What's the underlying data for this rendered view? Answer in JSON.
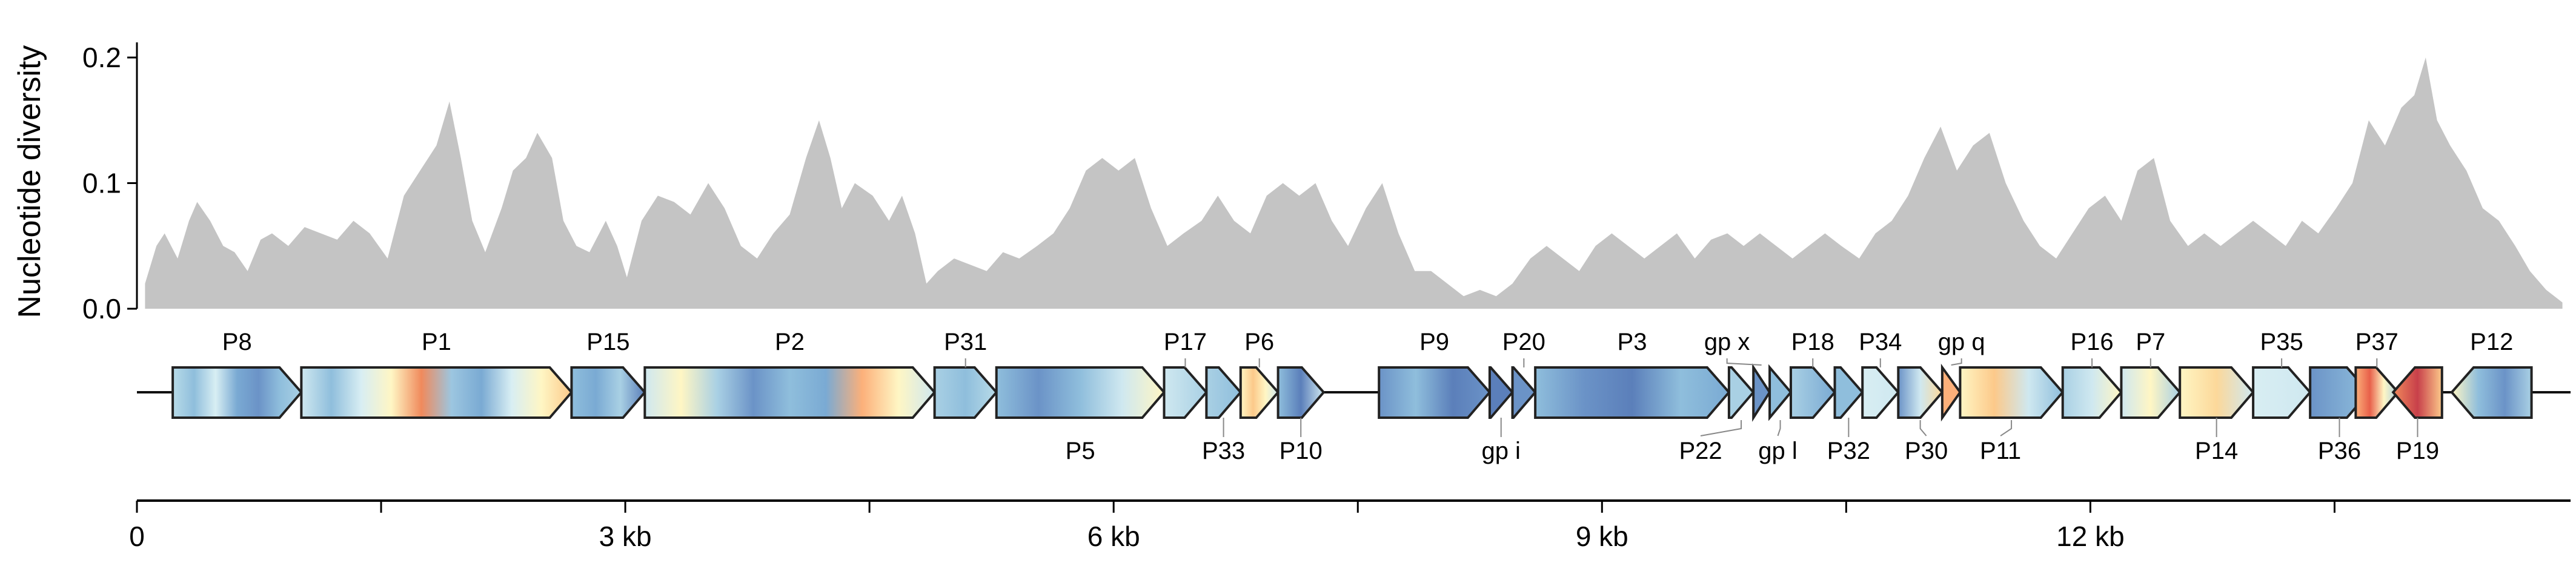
{
  "chart_data": {
    "type": "area",
    "ylabel": "Nucleotide diversity",
    "xlabel": "",
    "ylim": [
      0.0,
      0.2
    ],
    "yticks": [
      "0.0",
      "0.1",
      "0.2"
    ],
    "ytick_values": [
      0.0,
      0.1,
      0.2
    ],
    "xlim_kb": [
      0,
      14.95
    ],
    "xticks_kb": [
      0,
      1.5,
      3,
      4.5,
      6,
      7.5,
      9,
      10.5,
      12,
      13.5
    ],
    "xtick_labels": [
      "0",
      "",
      "3 kb",
      "",
      "6 kb",
      "",
      "9 kb",
      "",
      "12 kb",
      ""
    ],
    "fill_color": "#c4c4c4",
    "series": [
      {
        "name": "Nucleotide diversity",
        "x_kb": [
          0.05,
          0.12,
          0.17,
          0.25,
          0.32,
          0.37,
          0.45,
          0.53,
          0.6,
          0.68,
          0.76,
          0.83,
          0.93,
          1.03,
          1.13,
          1.23,
          1.33,
          1.43,
          1.54,
          1.64,
          1.74,
          1.84,
          1.92,
          1.99,
          2.06,
          2.14,
          2.24,
          2.31,
          2.39,
          2.46,
          2.55,
          2.62,
          2.7,
          2.78,
          2.88,
          2.95,
          3.01,
          3.1,
          3.2,
          3.3,
          3.4,
          3.51,
          3.61,
          3.71,
          3.81,
          3.91,
          4.01,
          4.11,
          4.19,
          4.26,
          4.33,
          4.41,
          4.52,
          4.62,
          4.7,
          4.78,
          4.85,
          4.92,
          5.02,
          5.12,
          5.22,
          5.32,
          5.42,
          5.53,
          5.63,
          5.73,
          5.83,
          5.93,
          6.03,
          6.13,
          6.23,
          6.33,
          6.43,
          6.54,
          6.64,
          6.74,
          6.84,
          6.94,
          7.04,
          7.14,
          7.24,
          7.34,
          7.44,
          7.55,
          7.65,
          7.75,
          7.85,
          7.95,
          8.05,
          8.15,
          8.25,
          8.35,
          8.45,
          8.56,
          8.66,
          8.76,
          8.86,
          8.96,
          9.06,
          9.16,
          9.26,
          9.36,
          9.46,
          9.57,
          9.67,
          9.77,
          9.87,
          9.97,
          10.07,
          10.17,
          10.27,
          10.37,
          10.47,
          10.58,
          10.68,
          10.78,
          10.88,
          10.98,
          11.08,
          11.18,
          11.28,
          11.38,
          11.48,
          11.59,
          11.69,
          11.79,
          11.89,
          11.99,
          12.09,
          12.19,
          12.29,
          12.39,
          12.49,
          12.6,
          12.7,
          12.8,
          12.9,
          13.0,
          13.1,
          13.2,
          13.3,
          13.4,
          13.51,
          13.61,
          13.71,
          13.81,
          13.91,
          13.99,
          14.06,
          14.13,
          14.21,
          14.31,
          14.41,
          14.51,
          14.61,
          14.7,
          14.8,
          14.9
        ],
        "y": [
          0.02,
          0.05,
          0.06,
          0.04,
          0.07,
          0.085,
          0.07,
          0.05,
          0.045,
          0.03,
          0.055,
          0.06,
          0.05,
          0.065,
          0.06,
          0.055,
          0.07,
          0.06,
          0.04,
          0.09,
          0.11,
          0.13,
          0.165,
          0.12,
          0.07,
          0.045,
          0.08,
          0.11,
          0.12,
          0.14,
          0.12,
          0.07,
          0.05,
          0.045,
          0.07,
          0.05,
          0.025,
          0.07,
          0.09,
          0.085,
          0.075,
          0.1,
          0.08,
          0.05,
          0.04,
          0.06,
          0.075,
          0.12,
          0.15,
          0.12,
          0.08,
          0.1,
          0.09,
          0.07,
          0.09,
          0.06,
          0.02,
          0.03,
          0.04,
          0.035,
          0.03,
          0.045,
          0.04,
          0.05,
          0.06,
          0.08,
          0.11,
          0.12,
          0.11,
          0.12,
          0.08,
          0.05,
          0.06,
          0.07,
          0.09,
          0.07,
          0.06,
          0.09,
          0.1,
          0.09,
          0.1,
          0.07,
          0.05,
          0.08,
          0.1,
          0.06,
          0.03,
          0.03,
          0.02,
          0.01,
          0.015,
          0.01,
          0.02,
          0.04,
          0.05,
          0.04,
          0.03,
          0.05,
          0.06,
          0.05,
          0.04,
          0.05,
          0.06,
          0.04,
          0.055,
          0.06,
          0.05,
          0.06,
          0.05,
          0.04,
          0.05,
          0.06,
          0.05,
          0.04,
          0.06,
          0.07,
          0.09,
          0.12,
          0.145,
          0.11,
          0.13,
          0.14,
          0.1,
          0.07,
          0.05,
          0.04,
          0.06,
          0.08,
          0.09,
          0.07,
          0.11,
          0.12,
          0.07,
          0.05,
          0.06,
          0.05,
          0.06,
          0.07,
          0.06,
          0.05,
          0.07,
          0.06,
          0.08,
          0.1,
          0.15,
          0.13,
          0.16,
          0.17,
          0.2,
          0.15,
          0.13,
          0.11,
          0.08,
          0.07,
          0.05,
          0.03,
          0.015,
          0.005
        ]
      }
    ],
    "genome_track_kb": [
      0,
      14.95
    ],
    "genes": [
      {
        "name": "P8",
        "start": 0.22,
        "end": 1.01,
        "strand": "+",
        "label_pos": "top",
        "colors": [
          "#b8dbe8",
          "#8fbedc",
          "#d8eef3",
          "#7aaad3",
          "#6b93c7",
          "#8fbedc",
          "#a9d0e4"
        ]
      },
      {
        "name": "P1",
        "start": 1.01,
        "end": 2.67,
        "strand": "+",
        "label_pos": "top",
        "colors": [
          "#cfe8f0",
          "#8fbedc",
          "#d8eef3",
          "#fff6c4",
          "#f08a5c",
          "#9cc6e0",
          "#7aaad3",
          "#d8eef3",
          "#fff6c4",
          "#fcc98a"
        ]
      },
      {
        "name": "P15",
        "start": 2.67,
        "end": 3.12,
        "strand": "+",
        "label_pos": "top",
        "colors": [
          "#8fbedc",
          "#7aaad3",
          "#a9d0e4",
          "#5b7fba"
        ]
      },
      {
        "name": "P2",
        "start": 3.12,
        "end": 4.9,
        "strand": "+",
        "label_pos": "top",
        "colors": [
          "#cfe8f0",
          "#fff6c4",
          "#a9d0e4",
          "#6b93c7",
          "#8fbedc",
          "#7aaad3",
          "#fcb07a",
          "#fff6c4",
          "#cfe8f0"
        ]
      },
      {
        "name": "P31",
        "start": 4.9,
        "end": 5.28,
        "strand": "+",
        "label_pos": "top",
        "colors": [
          "#a9d0e4",
          "#8fbedc",
          "#b8dbe8"
        ]
      },
      {
        "name": "P5",
        "start": 5.28,
        "end": 6.31,
        "strand": "+",
        "label_pos": "bottom",
        "colors": [
          "#8fbedc",
          "#6b93c7",
          "#8fbedc",
          "#cfe8f0",
          "#fff6c4"
        ]
      },
      {
        "name": "P17",
        "start": 6.31,
        "end": 6.57,
        "strand": "+",
        "label_pos": "top",
        "colors": [
          "#cfe8f0",
          "#a9d0e4"
        ]
      },
      {
        "name": "P33",
        "start": 6.57,
        "end": 6.78,
        "strand": "+",
        "label_pos": "bottom",
        "colors": [
          "#a9d0e4",
          "#8fbedc"
        ]
      },
      {
        "name": "P6",
        "start": 6.78,
        "end": 7.01,
        "strand": "+",
        "label_pos": "top",
        "colors": [
          "#fff6c4",
          "#fcc98a",
          "#fff6c4",
          "#cfe8f0"
        ]
      },
      {
        "name": "P10",
        "start": 7.01,
        "end": 7.29,
        "strand": "+",
        "label_pos": "bottom",
        "colors": [
          "#8fbedc",
          "#5b7fba",
          "#cfe8f0"
        ]
      },
      {
        "name": "P9",
        "start": 7.63,
        "end": 8.31,
        "strand": "+",
        "label_pos": "top",
        "colors": [
          "#6b93c7",
          "#8fbedc",
          "#5b7fba",
          "#6b93c7"
        ]
      },
      {
        "name": "gp i",
        "start": 8.31,
        "end": 8.45,
        "strand": "+",
        "label_pos": "bottom",
        "colors": [
          "#5b7fba"
        ]
      },
      {
        "name": "P20",
        "start": 8.45,
        "end": 8.59,
        "strand": "+",
        "label_pos": "top",
        "colors": [
          "#6b93c7"
        ]
      },
      {
        "name": "P3",
        "start": 8.59,
        "end": 9.78,
        "strand": "+",
        "label_pos": "top",
        "colors": [
          "#8fbedc",
          "#6b93c7",
          "#5b7fba",
          "#8fbedc",
          "#7aaad3"
        ]
      },
      {
        "name": "P22",
        "start": 9.78,
        "end": 9.93,
        "strand": "+",
        "label_pos": "bottom",
        "colors": [
          "#a9d0e4"
        ]
      },
      {
        "name": "gp x",
        "start": 9.93,
        "end": 10.03,
        "strand": "+",
        "label_pos": "top",
        "colors": [
          "#6b93c7"
        ]
      },
      {
        "name": "gp l",
        "start": 10.03,
        "end": 10.16,
        "strand": "+",
        "label_pos": "bottom",
        "colors": [
          "#8fbedc"
        ]
      },
      {
        "name": "P18",
        "start": 10.16,
        "end": 10.43,
        "strand": "+",
        "label_pos": "top",
        "colors": [
          "#a9d0e4",
          "#7aaad3"
        ]
      },
      {
        "name": "P32",
        "start": 10.43,
        "end": 10.6,
        "strand": "+",
        "label_pos": "bottom",
        "colors": [
          "#8fbedc"
        ]
      },
      {
        "name": "P34",
        "start": 10.6,
        "end": 10.82,
        "strand": "+",
        "label_pos": "top",
        "colors": [
          "#d8eef3",
          "#cfe8f0"
        ]
      },
      {
        "name": "P30",
        "start": 10.82,
        "end": 11.09,
        "strand": "+",
        "label_pos": "bottom",
        "colors": [
          "#6b93c7",
          "#cfe8f0",
          "#fcd89a"
        ]
      },
      {
        "name": "gp q",
        "start": 11.09,
        "end": 11.2,
        "strand": "+",
        "label_pos": "top",
        "colors": [
          "#fcb07a"
        ]
      },
      {
        "name": "P11",
        "start": 11.2,
        "end": 11.83,
        "strand": "+",
        "label_pos": "bottom",
        "colors": [
          "#fff6c4",
          "#fcc98a",
          "#cfe8f0",
          "#8fbedc"
        ]
      },
      {
        "name": "P16",
        "start": 11.83,
        "end": 12.19,
        "strand": "+",
        "label_pos": "top",
        "colors": [
          "#a9d0e4",
          "#cfe8f0",
          "#fff6c4"
        ]
      },
      {
        "name": "P7",
        "start": 12.19,
        "end": 12.55,
        "strand": "+",
        "label_pos": "top",
        "colors": [
          "#cfe8f0",
          "#fff6c4",
          "#a9d0e4"
        ]
      },
      {
        "name": "P14",
        "start": 12.55,
        "end": 13.0,
        "strand": "+",
        "label_pos": "bottom",
        "colors": [
          "#fff6c4",
          "#fcd89a",
          "#cfe8f0"
        ]
      },
      {
        "name": "P35",
        "start": 13.0,
        "end": 13.35,
        "strand": "+",
        "label_pos": "top",
        "colors": [
          "#d8eef3",
          "#cfe8f0"
        ]
      },
      {
        "name": "P36",
        "start": 13.35,
        "end": 13.71,
        "strand": "+",
        "label_pos": "bottom",
        "colors": [
          "#6b93c7",
          "#8fbedc"
        ]
      },
      {
        "name": "P37",
        "start": 13.63,
        "end": 13.89,
        "strand": "+",
        "label_pos": "top",
        "colors": [
          "#fcb07a",
          "#e8604a",
          "#fff6c4",
          "#a9d0e4"
        ]
      },
      {
        "name": "P19",
        "start": 13.86,
        "end": 14.16,
        "strand": "-",
        "label_pos": "bottom",
        "colors": [
          "#f08a5c",
          "#c8404a",
          "#fcc98a"
        ]
      },
      {
        "name": "P12",
        "start": 14.22,
        "end": 14.71,
        "strand": "-",
        "label_pos": "top",
        "colors": [
          "#fff6c4",
          "#8fbedc",
          "#6b93c7",
          "#a9d0e4"
        ]
      }
    ]
  }
}
